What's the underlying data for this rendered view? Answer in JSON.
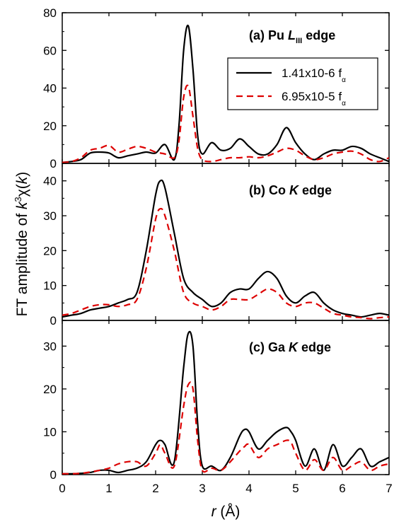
{
  "chart_data": {
    "type": "line",
    "xlabel": {
      "var": "r",
      "unit": " (Å)"
    },
    "ylabel": {
      "prefix": "FT amplitude of ",
      "k": "k",
      "exp": "3",
      "chi": "χ(",
      "k2": "k",
      "close": ")"
    },
    "xlim": [
      0,
      7
    ],
    "xticks": [
      "0",
      "1",
      "2",
      "3",
      "4",
      "5",
      "6",
      "7"
    ],
    "legend": {
      "placement": "upper-right of panel (a)",
      "entries": [
        {
          "main": "1.41x10-6 f",
          "sub": "α",
          "color": "#000000",
          "dash": "solid"
        },
        {
          "main": "6.95x10-5 f",
          "sub": "α",
          "color": "#dd0000",
          "dash": "dashed"
        }
      ]
    },
    "panels": [
      {
        "id": "a",
        "title": {
          "main": "(a) Pu ",
          "italic": "L",
          "sub": "III",
          "rest": " edge"
        },
        "ylim": [
          0,
          80
        ],
        "yticks": [
          0,
          20,
          40,
          60,
          80
        ],
        "series": [
          {
            "legend_index": 0,
            "x": [
              0,
              0.2,
              0.4,
              0.6,
              0.8,
              1.0,
              1.2,
              1.4,
              1.6,
              1.8,
              2.0,
              2.2,
              2.4,
              2.5,
              2.6,
              2.7,
              2.8,
              2.9,
              3.0,
              3.2,
              3.4,
              3.6,
              3.8,
              4.0,
              4.2,
              4.4,
              4.6,
              4.8,
              5.0,
              5.2,
              5.4,
              5.6,
              5.8,
              6.0,
              6.2,
              6.4,
              6.6,
              6.8,
              7.0
            ],
            "y": [
              0.5,
              1,
              2,
              5.5,
              6,
              5.5,
              3,
              4,
              5,
              6,
              5.5,
              10,
              2,
              20,
              60,
              73,
              50,
              15,
              5,
              11,
              7,
              8,
              13,
              9,
              5,
              5,
              10,
              19,
              11,
              5,
              2,
              5,
              7,
              7,
              9,
              8,
              5,
              3,
              1
            ]
          },
          {
            "legend_index": 1,
            "x": [
              0,
              0.2,
              0.4,
              0.6,
              0.8,
              1.0,
              1.2,
              1.4,
              1.6,
              1.8,
              2.0,
              2.2,
              2.4,
              2.5,
              2.6,
              2.7,
              2.8,
              2.9,
              3.0,
              3.2,
              3.4,
              3.6,
              3.8,
              4.0,
              4.2,
              4.4,
              4.6,
              4.8,
              5.0,
              5.2,
              5.4,
              5.6,
              5.8,
              6.0,
              6.2,
              6.4,
              6.6,
              6.8,
              7.0
            ],
            "y": [
              0.5,
              1,
              3,
              7,
              8,
              9.5,
              6,
              7.5,
              9,
              8,
              6,
              5,
              3,
              12,
              35,
              41,
              25,
              8,
              2,
              1,
              2,
              3,
              3,
              3.5,
              3,
              4,
              6,
              8,
              7,
              4,
              2,
              3,
              5,
              6,
              6.5,
              5,
              2,
              1,
              3
            ]
          }
        ]
      },
      {
        "id": "b",
        "title": {
          "main": "(b) Co ",
          "italic": "K",
          "sub": "",
          "rest": " edge"
        },
        "ylim": [
          0,
          45
        ],
        "yticks": [
          0,
          10,
          20,
          30,
          40
        ],
        "series": [
          {
            "legend_index": 0,
            "x": [
              0,
              0.2,
              0.4,
              0.6,
              0.8,
              1.0,
              1.2,
              1.4,
              1.6,
              1.8,
              2.0,
              2.1,
              2.2,
              2.4,
              2.6,
              2.8,
              3.0,
              3.2,
              3.4,
              3.6,
              3.8,
              4.0,
              4.2,
              4.4,
              4.6,
              4.8,
              5.0,
              5.2,
              5.4,
              5.6,
              5.8,
              6.0,
              6.2,
              6.4,
              6.6,
              6.8,
              7.0
            ],
            "y": [
              1,
              1.5,
              2,
              3,
              3.5,
              4,
              5,
              6,
              8,
              20,
              36,
              40,
              38,
              25,
              12,
              8,
              6,
              4,
              5,
              8,
              9,
              9,
              12,
              14,
              12,
              7,
              5,
              7,
              8,
              5,
              3,
              2,
              1.5,
              1,
              1.5,
              2,
              1.5
            ]
          },
          {
            "legend_index": 1,
            "x": [
              0,
              0.2,
              0.4,
              0.6,
              0.8,
              1.0,
              1.2,
              1.4,
              1.6,
              1.8,
              2.0,
              2.1,
              2.2,
              2.4,
              2.6,
              2.8,
              3.0,
              3.2,
              3.4,
              3.6,
              3.8,
              4.0,
              4.2,
              4.4,
              4.6,
              4.8,
              5.0,
              5.2,
              5.4,
              5.6,
              5.8,
              6.0,
              6.2,
              6.4,
              6.6,
              6.8,
              7.0
            ],
            "y": [
              1.5,
              2,
              3,
              4,
              4.5,
              4.5,
              4,
              4.5,
              6,
              15,
              29,
              32,
              30,
              20,
              8,
              5,
              4,
              3,
              4,
              6,
              6,
              6,
              7.5,
              9,
              8,
              5,
              4,
              5,
              5,
              3.5,
              2,
              1.5,
              1,
              0.8,
              0.5,
              0.8,
              1
            ]
          }
        ]
      },
      {
        "id": "c",
        "title": {
          "main": "(c) Ga ",
          "italic": "K",
          "sub": "",
          "rest": " edge"
        },
        "ylim": [
          0,
          36
        ],
        "yticks": [
          0,
          10,
          20,
          30
        ],
        "series": [
          {
            "legend_index": 0,
            "x": [
              0,
              0.2,
              0.4,
              0.6,
              0.8,
              1.0,
              1.2,
              1.4,
              1.6,
              1.8,
              2.0,
              2.1,
              2.2,
              2.4,
              2.6,
              2.7,
              2.8,
              2.9,
              3.0,
              3.2,
              3.4,
              3.6,
              3.8,
              3.9,
              4.0,
              4.2,
              4.4,
              4.6,
              4.8,
              4.9,
              5.0,
              5.2,
              5.4,
              5.6,
              5.8,
              6.0,
              6.2,
              6.4,
              6.6,
              6.8,
              7.0
            ],
            "y": [
              0.2,
              0.2,
              0.3,
              0.5,
              1,
              1,
              0.5,
              1,
              1.5,
              3,
              7,
              8,
              7,
              3,
              25,
              33,
              30,
              12,
              2,
              2,
              1,
              4,
              9,
              10.5,
              10,
              6,
              8,
              10,
              11,
              10,
              8,
              2,
              6,
              1,
              7,
              2,
              4,
              6,
              2,
              3,
              4
            ]
          },
          {
            "legend_index": 1,
            "x": [
              0,
              0.2,
              0.4,
              0.6,
              0.8,
              1.0,
              1.2,
              1.4,
              1.6,
              1.8,
              2.0,
              2.1,
              2.2,
              2.4,
              2.6,
              2.7,
              2.8,
              2.9,
              3.0,
              3.2,
              3.4,
              3.6,
              3.8,
              3.9,
              4.0,
              4.2,
              4.4,
              4.6,
              4.8,
              4.9,
              5.0,
              5.2,
              5.4,
              5.6,
              5.8,
              6.0,
              6.2,
              6.4,
              6.6,
              6.8,
              7.0
            ],
            "y": [
              0.2,
              0.2,
              0.3,
              0.6,
              1,
              1.5,
              2.5,
              3,
              3,
              2,
              5,
              7,
              5,
              2,
              16,
              21,
              20,
              8,
              1,
              1.5,
              1,
              3,
              5.5,
              6.5,
              7,
              4,
              6,
              7,
              8,
              7.5,
              5,
              1,
              3.5,
              1,
              4,
              1,
              2,
              3,
              1,
              2,
              2.5
            ]
          }
        ]
      }
    ]
  }
}
